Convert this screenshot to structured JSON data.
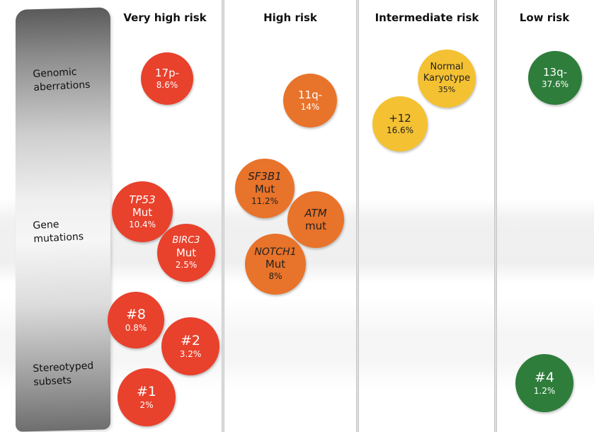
{
  "colors": {
    "very_high": "#e8412c",
    "high": "#e8732a",
    "intermediate": "#f4c132",
    "low": "#2e7d3b"
  },
  "columns": [
    {
      "label": "Very high risk"
    },
    {
      "label": "High risk"
    },
    {
      "label": "Intermediate risk"
    },
    {
      "label": "Low risk"
    }
  ],
  "rows": [
    {
      "label": "Genomic\naberrations"
    },
    {
      "label": "Gene\nmutations"
    },
    {
      "label": "Stereotyped\nsubsets"
    }
  ],
  "bubbles": {
    "p17": {
      "line1": "17p-",
      "line2": "8.6%"
    },
    "q11": {
      "line1": "11q-",
      "line2": "14%"
    },
    "normal": {
      "line1": "Normal",
      "line2": "Karyotype",
      "line3": "35%"
    },
    "plus12": {
      "line1": "+12",
      "line2": "16.6%"
    },
    "q13": {
      "line1": "13q-",
      "line2": "37.6%"
    },
    "tp53": {
      "line1": "TP53",
      "line2": "Mut",
      "line3": "10.4%"
    },
    "birc3": {
      "line1": "BIRC3",
      "line2": "Mut",
      "line3": "2.5%"
    },
    "sf3b1": {
      "line1": "SF3B1",
      "line2": "Mut",
      "line3": "11.2%"
    },
    "atm": {
      "line1": "ATM",
      "line2": "mut"
    },
    "notch1": {
      "line1": "NOTCH1",
      "line2": "Mut",
      "line3": "8%"
    },
    "s8": {
      "line1": "#8",
      "line2": "0.8%"
    },
    "s2": {
      "line1": "#2",
      "line2": "3.2%"
    },
    "s1": {
      "line1": "#1",
      "line2": "2%"
    },
    "s4": {
      "line1": "#4",
      "line2": "1.2%"
    }
  }
}
